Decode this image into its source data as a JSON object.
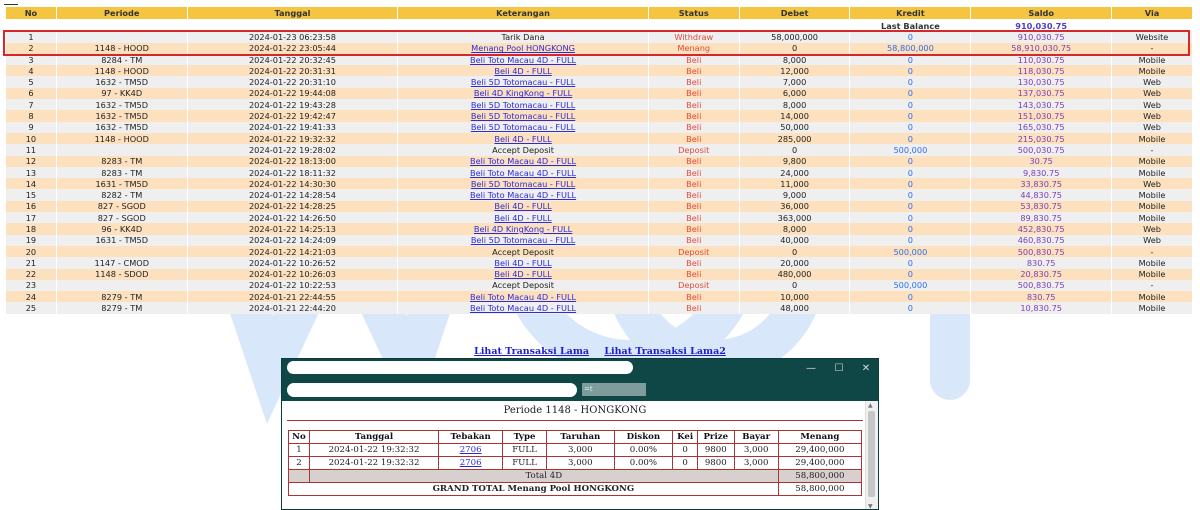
{
  "table": {
    "headers": [
      "No",
      "Periode",
      "Tanggal",
      "Keterangan",
      "Status",
      "Debet",
      "Kredit",
      "Saldo",
      "Via"
    ],
    "last_balance_label": "Last Balance",
    "last_balance_value": "910,030.75",
    "rows": [
      {
        "no": "1",
        "periode": "",
        "tanggal": "2024-01-23 06:23:58",
        "keterangan": "Tarik Dana",
        "status": "Withdraw",
        "debet": "58,000,000",
        "kredit": "0",
        "saldo": "910,030.75",
        "via": "Website",
        "link": false
      },
      {
        "no": "2",
        "periode": "1148 - HOOD",
        "tanggal": "2024-01-22 23:05:44",
        "keterangan": "Menang Pool HONGKONG",
        "status": "Menang",
        "debet": "0",
        "kredit": "58,800,000",
        "saldo": "58,910,030.75",
        "via": "-",
        "link": true
      },
      {
        "no": "3",
        "periode": "8284 - TM",
        "tanggal": "2024-01-22 20:32:45",
        "keterangan": "Beli Toto Macau 4D - FULL",
        "status": "Beli",
        "debet": "8,000",
        "kredit": "0",
        "saldo": "110,030.75",
        "via": "Mobile",
        "link": true
      },
      {
        "no": "4",
        "periode": "1148 - HOOD",
        "tanggal": "2024-01-22 20:31:31",
        "keterangan": "Beli 4D - FULL",
        "status": "Beli",
        "debet": "12,000",
        "kredit": "0",
        "saldo": "118,030.75",
        "via": "Mobile",
        "link": true
      },
      {
        "no": "5",
        "periode": "1632 - TM5D",
        "tanggal": "2024-01-22 20:31:10",
        "keterangan": "Beli 5D Totomacau - FULL",
        "status": "Beli",
        "debet": "7,000",
        "kredit": "0",
        "saldo": "130,030.75",
        "via": "Web",
        "link": true
      },
      {
        "no": "6",
        "periode": "97 - KK4D",
        "tanggal": "2024-01-22 19:44:08",
        "keterangan": "Beli 4D KingKong - FULL",
        "status": "Beli",
        "debet": "6,000",
        "kredit": "0",
        "saldo": "137,030.75",
        "via": "Web",
        "link": true
      },
      {
        "no": "7",
        "periode": "1632 - TM5D",
        "tanggal": "2024-01-22 19:43:28",
        "keterangan": "Beli 5D Totomacau - FULL",
        "status": "Beli",
        "debet": "8,000",
        "kredit": "0",
        "saldo": "143,030.75",
        "via": "Web",
        "link": true
      },
      {
        "no": "8",
        "periode": "1632 - TM5D",
        "tanggal": "2024-01-22 19:42:47",
        "keterangan": "Beli 5D Totomacau - FULL",
        "status": "Beli",
        "debet": "14,000",
        "kredit": "0",
        "saldo": "151,030.75",
        "via": "Web",
        "link": true
      },
      {
        "no": "9",
        "periode": "1632 - TM5D",
        "tanggal": "2024-01-22 19:41:33",
        "keterangan": "Beli 5D Totomacau - FULL",
        "status": "Beli",
        "debet": "50,000",
        "kredit": "0",
        "saldo": "165,030.75",
        "via": "Web",
        "link": true
      },
      {
        "no": "10",
        "periode": "1148 - HOOD",
        "tanggal": "2024-01-22 19:32:32",
        "keterangan": "Beli 4D - FULL",
        "status": "Beli",
        "debet": "285,000",
        "kredit": "0",
        "saldo": "215,030.75",
        "via": "Mobile",
        "link": true
      },
      {
        "no": "11",
        "periode": "",
        "tanggal": "2024-01-22 19:28:02",
        "keterangan": "Accept Deposit",
        "status": "Deposit",
        "debet": "0",
        "kredit": "500,000",
        "saldo": "500,030.75",
        "via": "-",
        "link": false
      },
      {
        "no": "12",
        "periode": "8283 - TM",
        "tanggal": "2024-01-22 18:13:00",
        "keterangan": "Beli Toto Macau 4D - FULL",
        "status": "Beli",
        "debet": "9,800",
        "kredit": "0",
        "saldo": "30.75",
        "via": "Mobile",
        "link": true
      },
      {
        "no": "13",
        "periode": "8283 - TM",
        "tanggal": "2024-01-22 18:11:32",
        "keterangan": "Beli Toto Macau 4D - FULL",
        "status": "Beli",
        "debet": "24,000",
        "kredit": "0",
        "saldo": "9,830.75",
        "via": "Mobile",
        "link": true
      },
      {
        "no": "14",
        "periode": "1631 - TM5D",
        "tanggal": "2024-01-22 14:30:30",
        "keterangan": "Beli 5D Totomacau - FULL",
        "status": "Beli",
        "debet": "11,000",
        "kredit": "0",
        "saldo": "33,830.75",
        "via": "Web",
        "link": true
      },
      {
        "no": "15",
        "periode": "8282 - TM",
        "tanggal": "2024-01-22 14:28:54",
        "keterangan": "Beli Toto Macau 4D - FULL",
        "status": "Beli",
        "debet": "9,000",
        "kredit": "0",
        "saldo": "44,830.75",
        "via": "Mobile",
        "link": true
      },
      {
        "no": "16",
        "periode": "827 - SGOD",
        "tanggal": "2024-01-22 14:28:25",
        "keterangan": "Beli 4D - FULL",
        "status": "Beli",
        "debet": "36,000",
        "kredit": "0",
        "saldo": "53,830.75",
        "via": "Mobile",
        "link": true
      },
      {
        "no": "17",
        "periode": "827 - SGOD",
        "tanggal": "2024-01-22 14:26:50",
        "keterangan": "Beli 4D - FULL",
        "status": "Beli",
        "debet": "363,000",
        "kredit": "0",
        "saldo": "89,830.75",
        "via": "Mobile",
        "link": true
      },
      {
        "no": "18",
        "periode": "96 - KK4D",
        "tanggal": "2024-01-22 14:25:13",
        "keterangan": "Beli 4D KingKong - FULL",
        "status": "Beli",
        "debet": "8,000",
        "kredit": "0",
        "saldo": "452,830.75",
        "via": "Web",
        "link": true
      },
      {
        "no": "19",
        "periode": "1631 - TM5D",
        "tanggal": "2024-01-22 14:24:09",
        "keterangan": "Beli 5D Totomacau - FULL",
        "status": "Beli",
        "debet": "40,000",
        "kredit": "0",
        "saldo": "460,830.75",
        "via": "Web",
        "link": true
      },
      {
        "no": "20",
        "periode": "",
        "tanggal": "2024-01-22 14:21:03",
        "keterangan": "Accept Deposit",
        "status": "Deposit",
        "debet": "0",
        "kredit": "500,000",
        "saldo": "500,830.75",
        "via": "-",
        "link": false
      },
      {
        "no": "21",
        "periode": "1147 - CMOD",
        "tanggal": "2024-01-22 10:26:52",
        "keterangan": "Beli 4D - FULL",
        "status": "Beli",
        "debet": "20,000",
        "kredit": "0",
        "saldo": "830.75",
        "via": "Mobile",
        "link": true
      },
      {
        "no": "22",
        "periode": "1148 - SDOD",
        "tanggal": "2024-01-22 10:26:03",
        "keterangan": "Beli 4D - FULL",
        "status": "Beli",
        "debet": "480,000",
        "kredit": "0",
        "saldo": "20,830.75",
        "via": "Mobile",
        "link": true
      },
      {
        "no": "23",
        "periode": "",
        "tanggal": "2024-01-22 10:22:53",
        "keterangan": "Accept Deposit",
        "status": "Deposit",
        "debet": "0",
        "kredit": "500,000",
        "saldo": "500,830.75",
        "via": "-",
        "link": false
      },
      {
        "no": "24",
        "periode": "8279 - TM",
        "tanggal": "2024-01-21 22:44:55",
        "keterangan": "Beli Toto Macau 4D - FULL",
        "status": "Beli",
        "debet": "10,000",
        "kredit": "0",
        "saldo": "830.75",
        "via": "Mobile",
        "link": true
      },
      {
        "no": "25",
        "periode": "8279 - TM",
        "tanggal": "2024-01-21 22:44:20",
        "keterangan": "Beli Toto Macau 4D - FULL",
        "status": "Beli",
        "debet": "48,000",
        "kredit": "0",
        "saldo": "10,830.75",
        "via": "Mobile",
        "link": true
      }
    ]
  },
  "links": {
    "old": "Lihat Transaksi Lama",
    "old2": "Lihat Transaksi Lama2"
  },
  "popup": {
    "url_suffix": "=t",
    "window_buttons": {
      "minimize": "—",
      "maximize": "☐",
      "close": "✕"
    },
    "periode_title": "Periode 1148 - HONGKONG",
    "headers": [
      "No",
      "Tanggal",
      "Tebakan",
      "Type",
      "Taruhan",
      "Diskon",
      "Kei",
      "Prize",
      "Bayar",
      "Menang"
    ],
    "rows": [
      {
        "no": "1",
        "tanggal": "2024-01-22 19:32:32",
        "tebakan": "2706",
        "type": "FULL",
        "taruhan": "3,000",
        "diskon": "0.00%",
        "kei": "0",
        "prize": "9800",
        "bayar": "3,000",
        "menang": "29,400,000"
      },
      {
        "no": "2",
        "tanggal": "2024-01-22 19:32:32",
        "tebakan": "2706",
        "type": "FULL",
        "taruhan": "3,000",
        "diskon": "0.00%",
        "kei": "0",
        "prize": "9800",
        "bayar": "3,000",
        "menang": "29,400,000"
      }
    ],
    "total_label": "Total 4D",
    "total_value": "58,800,000",
    "grand_label": "GRAND TOTAL  Menang Pool HONGKONG",
    "grand_value": "58,800,000"
  },
  "colors": {
    "header": "#f5c542",
    "row_even": "#fde0bd",
    "row_odd": "#efefef",
    "highlight": "#d62828",
    "link": "#2b2bd8",
    "popup_title": "#0f4747"
  }
}
